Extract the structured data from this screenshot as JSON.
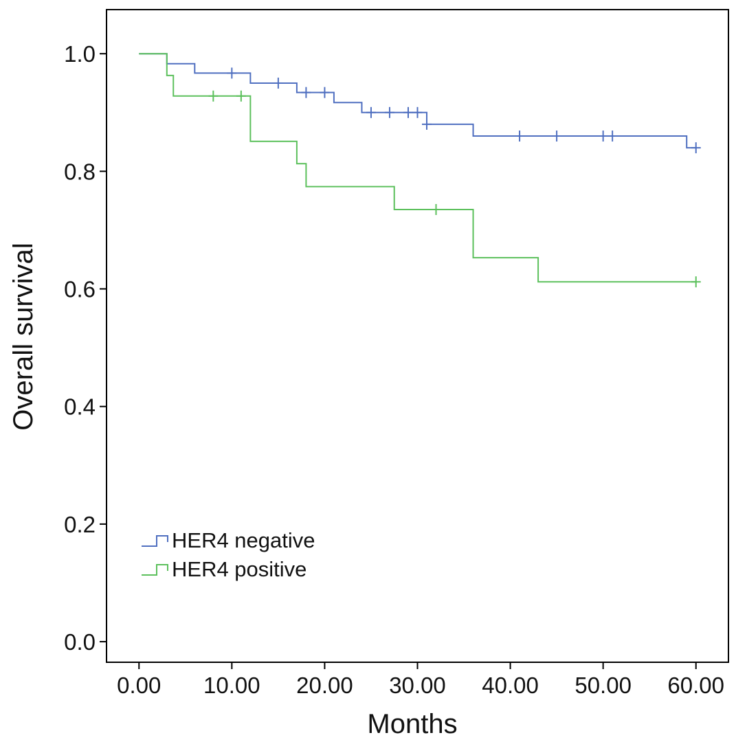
{
  "chart_data": {
    "type": "line",
    "title": "",
    "xlabel": "Months",
    "ylabel": "Overall survival",
    "xlim": [
      -3.5,
      63.5
    ],
    "ylim": [
      -0.035,
      1.075
    ],
    "x_ticks": [
      0,
      10,
      20,
      30,
      40,
      50,
      60
    ],
    "x_tick_labels": [
      "0.00",
      "10.00",
      "20.00",
      "30.00",
      "40.00",
      "50.00",
      "60.00"
    ],
    "y_ticks": [
      0,
      0.2,
      0.4,
      0.6,
      0.8,
      1.0
    ],
    "y_tick_labels": [
      "0.0",
      "0.2",
      "0.4",
      "0.6",
      "0.8",
      "1.0"
    ],
    "grid": false,
    "legend_position": "bottom-left",
    "series": [
      {
        "name": "HER4 negative",
        "color": "#4f6fc0",
        "step": {
          "x": [
            0,
            3,
            6,
            12,
            17,
            21,
            24,
            31,
            36,
            59,
            60
          ],
          "y": [
            1.0,
            0.983,
            0.967,
            0.95,
            0.934,
            0.917,
            0.9,
            0.88,
            0.86,
            0.84,
            0.84
          ]
        },
        "censored": {
          "x": [
            10,
            15,
            18,
            20,
            25,
            27,
            29,
            30,
            31,
            41,
            45,
            50,
            51,
            60
          ],
          "y": [
            0.967,
            0.95,
            0.934,
            0.934,
            0.9,
            0.9,
            0.9,
            0.9,
            0.88,
            0.86,
            0.86,
            0.86,
            0.86,
            0.84
          ]
        }
      },
      {
        "name": "HER4 positive",
        "color": "#5cc05c",
        "step": {
          "x": [
            0,
            3,
            3.7,
            12,
            17,
            18,
            27.5,
            36,
            43,
            60
          ],
          "y": [
            1.0,
            0.963,
            0.928,
            0.851,
            0.813,
            0.774,
            0.735,
            0.653,
            0.612,
            0.612
          ]
        },
        "censored": {
          "x": [
            8,
            11,
            32,
            60
          ],
          "y": [
            0.928,
            0.928,
            0.735,
            0.612
          ]
        }
      }
    ]
  }
}
